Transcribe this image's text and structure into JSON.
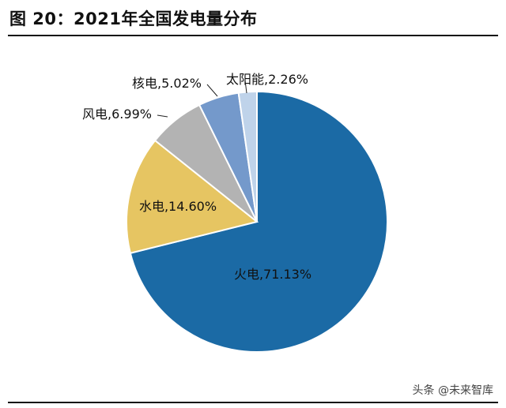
{
  "header": {
    "title": "图 20：2021年全国发电量分布"
  },
  "watermark": "头条 @未来智库",
  "chart_data": {
    "type": "pie",
    "title": "2021年全国发电量分布",
    "start": "12 o'clock, clockwise",
    "slices": [
      {
        "name": "火电",
        "value": 71.13,
        "label": "火电,71.13%",
        "color": "#1B6AA5"
      },
      {
        "name": "水电",
        "value": 14.6,
        "label": "水电,14.60%",
        "color": "#E6C562"
      },
      {
        "name": "风电",
        "value": 6.99,
        "label": "风电,6.99%",
        "color": "#B3B3B3"
      },
      {
        "name": "核电",
        "value": 5.02,
        "label": "核电,5.02%",
        "color": "#7499CB"
      },
      {
        "name": "太阳能",
        "value": 2.26,
        "label": "太阳能,2.26%",
        "color": "#BFD3EA"
      }
    ]
  }
}
